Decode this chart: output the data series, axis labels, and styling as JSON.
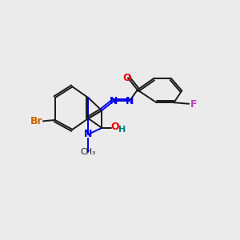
{
  "bg_color": "#ebebeb",
  "bond_color": "#1a1a1a",
  "colors": {
    "N": "#0000ee",
    "O": "#ee0000",
    "Br": "#cc6600",
    "F": "#bb44bb",
    "H": "#008080",
    "C": "#1a1a1a"
  }
}
